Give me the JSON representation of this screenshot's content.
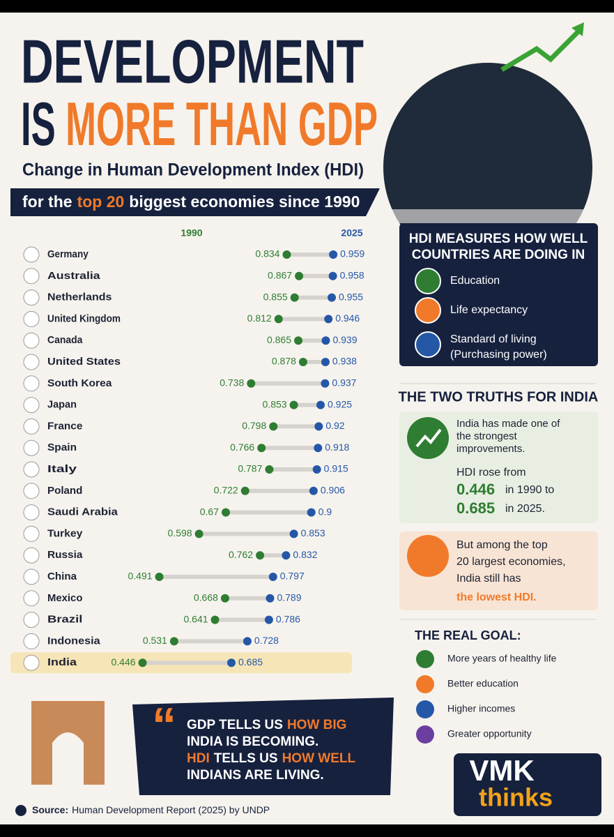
{
  "header": {
    "title_line1": "DEVELOPMENT",
    "title_line2": [
      "IS",
      "MORE THAN GDP"
    ],
    "subtitle": "Change in Human Development Index (HDI)",
    "band": [
      "for the",
      "top 20",
      "biggest economies since 1990"
    ]
  },
  "chart_data": {
    "type": "dumbbell",
    "categories": [
      "Germany",
      "Australia",
      "Netherlands",
      "United Kingdom",
      "Canada",
      "United States",
      "South Korea",
      "Japan",
      "France",
      "Spain",
      "Italy",
      "Poland",
      "Saudi Arabia",
      "Turkey",
      "Russia",
      "China",
      "Mexico",
      "Brazil",
      "Indonesia",
      "India"
    ],
    "series": [
      {
        "name": "1990",
        "color": "#2e7d32",
        "values": [
          0.834,
          0.867,
          0.855,
          0.812,
          0.865,
          0.878,
          0.738,
          0.853,
          0.798,
          0.766,
          0.787,
          0.722,
          0.67,
          0.598,
          0.762,
          0.491,
          0.668,
          0.641,
          0.531,
          0.446
        ]
      },
      {
        "name": "2025",
        "color": "#2557a7",
        "values": [
          0.959,
          0.958,
          0.955,
          0.946,
          0.939,
          0.938,
          0.937,
          0.925,
          0.92,
          0.918,
          0.915,
          0.906,
          0.9,
          0.853,
          0.832,
          0.797,
          0.789,
          0.786,
          0.728,
          0.685
        ]
      }
    ],
    "xlim": [
      0.4,
      1.0
    ],
    "highlight": "India"
  },
  "measures": {
    "title": [
      "HDI MEASURES HOW WELL",
      "COUNTRIES ARE DOING IN"
    ],
    "items": [
      [
        "Education"
      ],
      [
        "Life expectancy"
      ],
      [
        "Standard of living",
        "(Purchasing power)"
      ]
    ]
  },
  "truths": {
    "title": "THE TWO TRUTHS FOR INDIA",
    "first": [
      "India has made one of",
      "the strongest",
      "improvements."
    ],
    "rose": "HDI rose from",
    "from_value": "0.446",
    "from_text": "in 1990 to",
    "to_value": "0.685",
    "to_text": "in 2025.",
    "second": [
      "But among the top",
      "20 largest economies,",
      "India still has"
    ],
    "second_emphasis": "the lowest HDI."
  },
  "goal": {
    "title": "THE REAL GOAL:",
    "items": [
      "More years of healthy life",
      "Better education",
      "Higher incomes",
      "Greater opportunity"
    ]
  },
  "quote": [
    [
      {
        "text": "GDP TELLS US",
        "color": "#ffffff"
      },
      {
        "text": "HOW BIG",
        "color": "#f07a2a"
      }
    ],
    [
      {
        "text": "INDIA IS BECOMING.",
        "color": "#ffffff"
      }
    ],
    [
      {
        "text": "HDI",
        "color": "#f07a2a"
      },
      {
        "text": "TELLS US",
        "color": "#ffffff"
      },
      {
        "text": "HOW WELL",
        "color": "#f07a2a"
      }
    ],
    [
      {
        "text": "INDIANS ARE LIVING.",
        "color": "#ffffff"
      }
    ]
  ],
  "source": {
    "label": "Source:",
    "text": "Human Development Report (2025) by UNDP"
  },
  "logo": {
    "line1": "VMK",
    "line2": "thinks"
  }
}
